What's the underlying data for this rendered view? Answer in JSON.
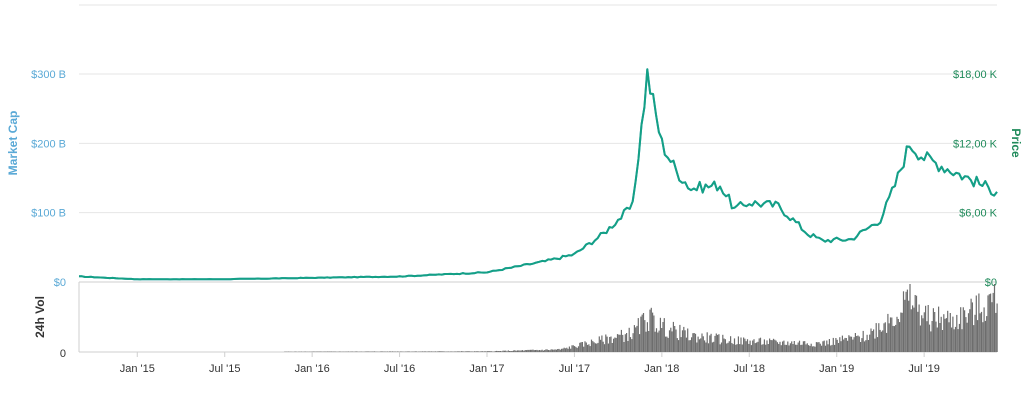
{
  "chart_data": {
    "type": "line",
    "title": "",
    "left_axis": {
      "title": "Market Cap",
      "ticks": [
        "$0",
        "$100 B",
        "$200 B",
        "$300 B"
      ],
      "range": [
        0,
        300
      ],
      "color": "#5aa9d6"
    },
    "right_axis": {
      "title": "Price",
      "ticks": [
        "$0",
        "$6,00 K",
        "$12,00 K",
        "$18,00 K"
      ],
      "range": [
        0,
        18000
      ],
      "color": "#1f8a5a"
    },
    "volume_axis": {
      "title": "24h Vol",
      "ticks": [
        "0"
      ]
    },
    "x_ticks": [
      "Jan '15",
      "Jul '15",
      "Jan '16",
      "Jul '16",
      "Jan '17",
      "Jul '17",
      "Jan '18",
      "Jul '18",
      "Jan '19",
      "Jul '19"
    ],
    "x_tick_dates": [
      "2015-01",
      "2015-07",
      "2016-01",
      "2016-07",
      "2017-01",
      "2017-07",
      "2018-01",
      "2018-07",
      "2019-01",
      "2019-07"
    ],
    "x_range": [
      "2014-09",
      "2019-12"
    ],
    "grid": true,
    "colors": {
      "market_cap": "#5aa9d6",
      "price": "#14a085",
      "volume": "#6d6d6d"
    },
    "series": [
      {
        "name": "Market Cap",
        "axis": "left",
        "x": [
          "2014-09",
          "2015-01",
          "2015-07",
          "2016-01",
          "2016-07",
          "2017-01",
          "2017-05",
          "2017-07",
          "2017-09",
          "2017-11",
          "2017-12",
          "2018-01",
          "2018-02",
          "2018-03",
          "2018-05",
          "2018-06",
          "2018-07",
          "2018-09",
          "2018-11",
          "2018-12",
          "2019-02",
          "2019-04",
          "2019-05",
          "2019-06",
          "2019-07",
          "2019-09",
          "2019-10",
          "2019-12"
        ],
        "values": [
          8,
          4,
          4,
          6,
          8,
          14,
          30,
          40,
          70,
          110,
          300,
          200,
          160,
          135,
          140,
          105,
          115,
          110,
          70,
          60,
          62,
          90,
          140,
          200,
          180,
          160,
          150,
          130
        ]
      },
      {
        "name": "Price",
        "axis": "right",
        "x": [
          "2014-09",
          "2015-01",
          "2015-07",
          "2016-01",
          "2016-07",
          "2017-01",
          "2017-05",
          "2017-07",
          "2017-09",
          "2017-11",
          "2017-12",
          "2018-01",
          "2018-02",
          "2018-03",
          "2018-05",
          "2018-06",
          "2018-07",
          "2018-09",
          "2018-11",
          "2018-12",
          "2019-02",
          "2019-04",
          "2019-05",
          "2019-06",
          "2019-07",
          "2019-09",
          "2019-10",
          "2019-12"
        ],
        "values": [
          480,
          240,
          240,
          360,
          480,
          840,
          1800,
          2400,
          4200,
          6600,
          18000,
          12000,
          9600,
          8100,
          8400,
          6300,
          6900,
          6600,
          4200,
          3600,
          3700,
          5400,
          8400,
          12000,
          10800,
          9600,
          9000,
          7800
        ]
      },
      {
        "name": "24h Vol",
        "axis": "volume",
        "x": [
          "2014-09",
          "2017-01",
          "2017-06",
          "2017-11",
          "2017-12",
          "2018-01",
          "2018-03",
          "2018-06",
          "2018-09",
          "2018-12",
          "2019-03",
          "2019-05",
          "2019-06",
          "2019-07",
          "2019-09",
          "2019-11",
          "2019-12"
        ],
        "values": [
          0,
          0.01,
          0.04,
          0.3,
          0.55,
          0.4,
          0.25,
          0.18,
          0.15,
          0.14,
          0.25,
          0.6,
          0.85,
          0.55,
          0.5,
          0.7,
          0.9
        ]
      }
    ]
  }
}
